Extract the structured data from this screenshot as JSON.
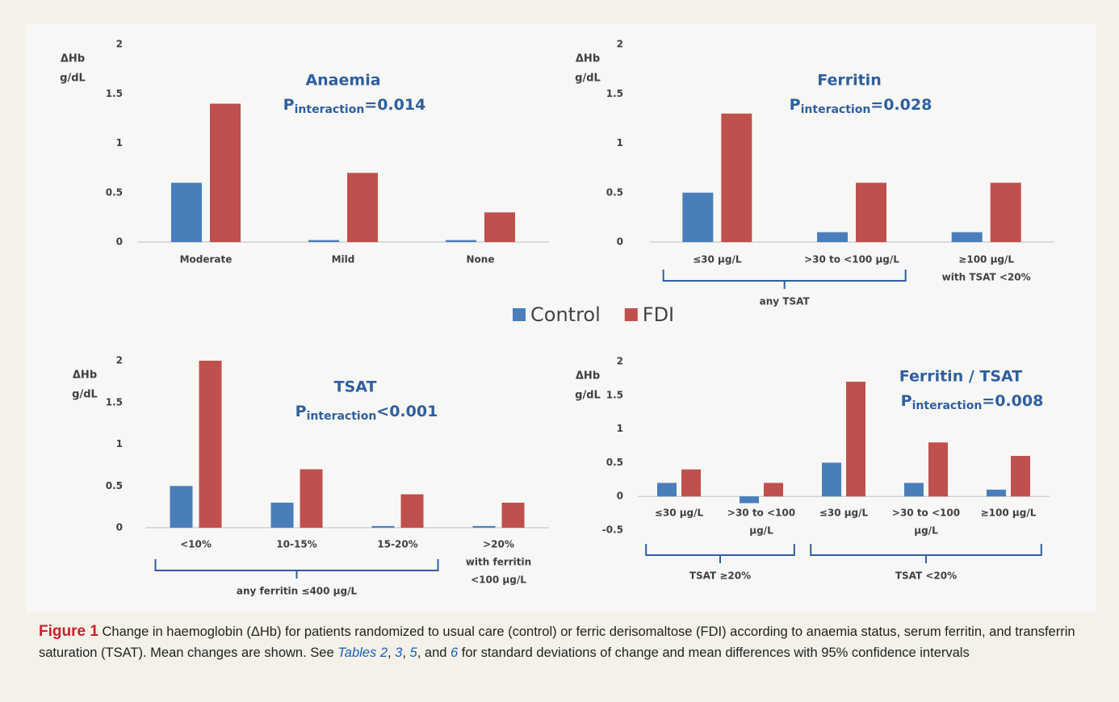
{
  "legend": [
    {
      "name": "Control",
      "color": "#4a7ebb"
    },
    {
      "name": "FDI",
      "color": "#c0504d"
    }
  ],
  "chart_data": [
    {
      "type": "bar",
      "title": "Anaemia",
      "annotation": {
        "symbol": "P",
        "subscript": "interaction",
        "text": "=0.014"
      },
      "ylabel": [
        "ΔHb",
        "g/dL"
      ],
      "categories": [
        "Moderate",
        "Mild",
        "None"
      ],
      "series": [
        {
          "values": [
            0.6,
            0.02,
            0.02
          ]
        },
        {
          "values": [
            1.4,
            0.7,
            0.3
          ]
        }
      ],
      "ylim": [
        0,
        2
      ],
      "yticks": [
        0,
        0.5,
        1,
        1.5,
        2
      ],
      "grid": false,
      "brackets": []
    },
    {
      "type": "bar",
      "title": "Ferritin",
      "annotation": {
        "symbol": "P",
        "subscript": "interaction",
        "text": "=0.028"
      },
      "ylabel": [
        "ΔHb",
        "g/dL"
      ],
      "categories": [
        "≤30 µg/L",
        ">30 to <100 µg/L",
        [
          "≥100 µg/L",
          "with TSAT <20%"
        ]
      ],
      "series": [
        {
          "values": [
            0.5,
            0.1,
            0.1
          ]
        },
        {
          "values": [
            1.3,
            0.6,
            0.6
          ]
        }
      ],
      "ylim": [
        0,
        2
      ],
      "yticks": [
        0,
        0.5,
        1,
        1.5,
        2
      ],
      "grid": false,
      "brackets": [
        {
          "label": "any TSAT",
          "span": [
            0,
            1
          ]
        }
      ]
    },
    {
      "type": "bar",
      "title": "TSAT",
      "annotation": {
        "symbol": "P",
        "subscript": "interaction",
        "text": "<0.001"
      },
      "ylabel": [
        "ΔHb",
        "g/dL"
      ],
      "categories": [
        "<10%",
        "10-15%",
        "15-20%",
        [
          ">20%",
          "with ferritin",
          "<100 µg/L"
        ]
      ],
      "series": [
        {
          "values": [
            0.5,
            0.3,
            0.02,
            0.02
          ]
        },
        {
          "values": [
            2.0,
            0.7,
            0.4,
            0.3
          ]
        }
      ],
      "ylim": [
        0,
        2
      ],
      "yticks": [
        0,
        0.5,
        1,
        1.5,
        2
      ],
      "grid": false,
      "brackets": [
        {
          "label": "any ferritin ≤400 µg/L",
          "span": [
            0,
            2
          ]
        }
      ]
    },
    {
      "type": "bar",
      "title": "Ferritin / TSAT",
      "annotation": {
        "symbol": "P",
        "subscript": "interaction",
        "text": "=0.008"
      },
      "ylabel": [
        "ΔHb",
        "g/dL"
      ],
      "categories": [
        "≤30 µg/L",
        [
          ">30 to <100",
          "µg/L"
        ],
        "≤30 µg/L",
        [
          ">30 to <100",
          "µg/L"
        ],
        "≥100 µg/L"
      ],
      "series": [
        {
          "values": [
            0.2,
            -0.1,
            0.5,
            0.2,
            0.1
          ]
        },
        {
          "values": [
            0.4,
            0.2,
            1.7,
            0.8,
            0.6
          ]
        }
      ],
      "ylim": [
        -0.5,
        2
      ],
      "yticks": [
        -0.5,
        0,
        0.5,
        1,
        1.5,
        2
      ],
      "grid": false,
      "brackets": [
        {
          "label": "TSAT ≥20%",
          "span": [
            0,
            1
          ]
        },
        {
          "label": "TSAT <20%",
          "span": [
            2,
            4
          ]
        }
      ]
    }
  ],
  "caption": {
    "label": "Figure 1",
    "parts": [
      " Change in haemoglobin (ΔHb) for patients randomized to usual care (control) or ferric derisomaltose (FDI) according to anaemia status, serum ferritin, and transferrin saturation (TSAT). Mean changes are shown. See ",
      "Tables 2",
      ", ",
      "3",
      ", ",
      "5",
      ", and ",
      "6",
      " for standard deviations of change and mean differences with 95% confidence intervals"
    ]
  }
}
